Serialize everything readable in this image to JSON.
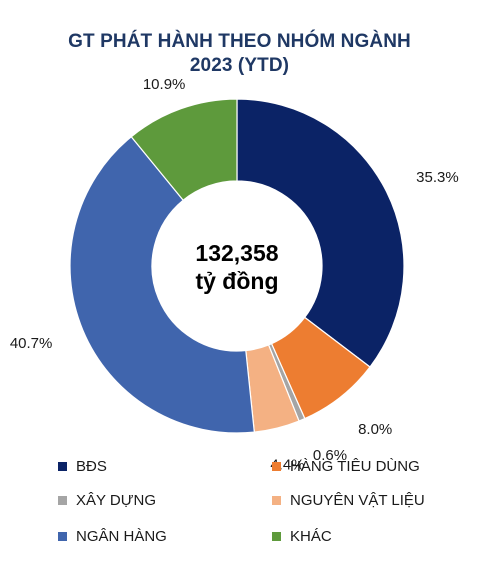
{
  "chart_data": {
    "type": "donut",
    "title_line1": "GT PHÁT HÀNH THEO NHÓM NGÀNH",
    "title_line2": "2023 (YTD)",
    "center_value": "132,358",
    "center_unit": "tỷ đồng",
    "series": [
      {
        "name": "BĐS",
        "value": 35.3,
        "label": "35.3%",
        "color": "#0b2366"
      },
      {
        "name": "HÀNG TIÊU DÙNG",
        "value": 8.0,
        "label": "8.0%",
        "color": "#ed7d31"
      },
      {
        "name": "XÂY DỰNG",
        "value": 0.6,
        "label": "0.6%",
        "color": "#a5a5a5"
      },
      {
        "name": "NGUYÊN VẬT LIỆU",
        "value": 4.4,
        "label": "4.4%",
        "color": "#f4b183"
      },
      {
        "name": "NGÂN HÀNG",
        "value": 40.7,
        "label": "40.7%",
        "color": "#4065ad"
      },
      {
        "name": "KHÁC",
        "value": 10.9,
        "label": "10.9%",
        "color": "#5e9a3c"
      }
    ],
    "legend_position": "bottom"
  }
}
